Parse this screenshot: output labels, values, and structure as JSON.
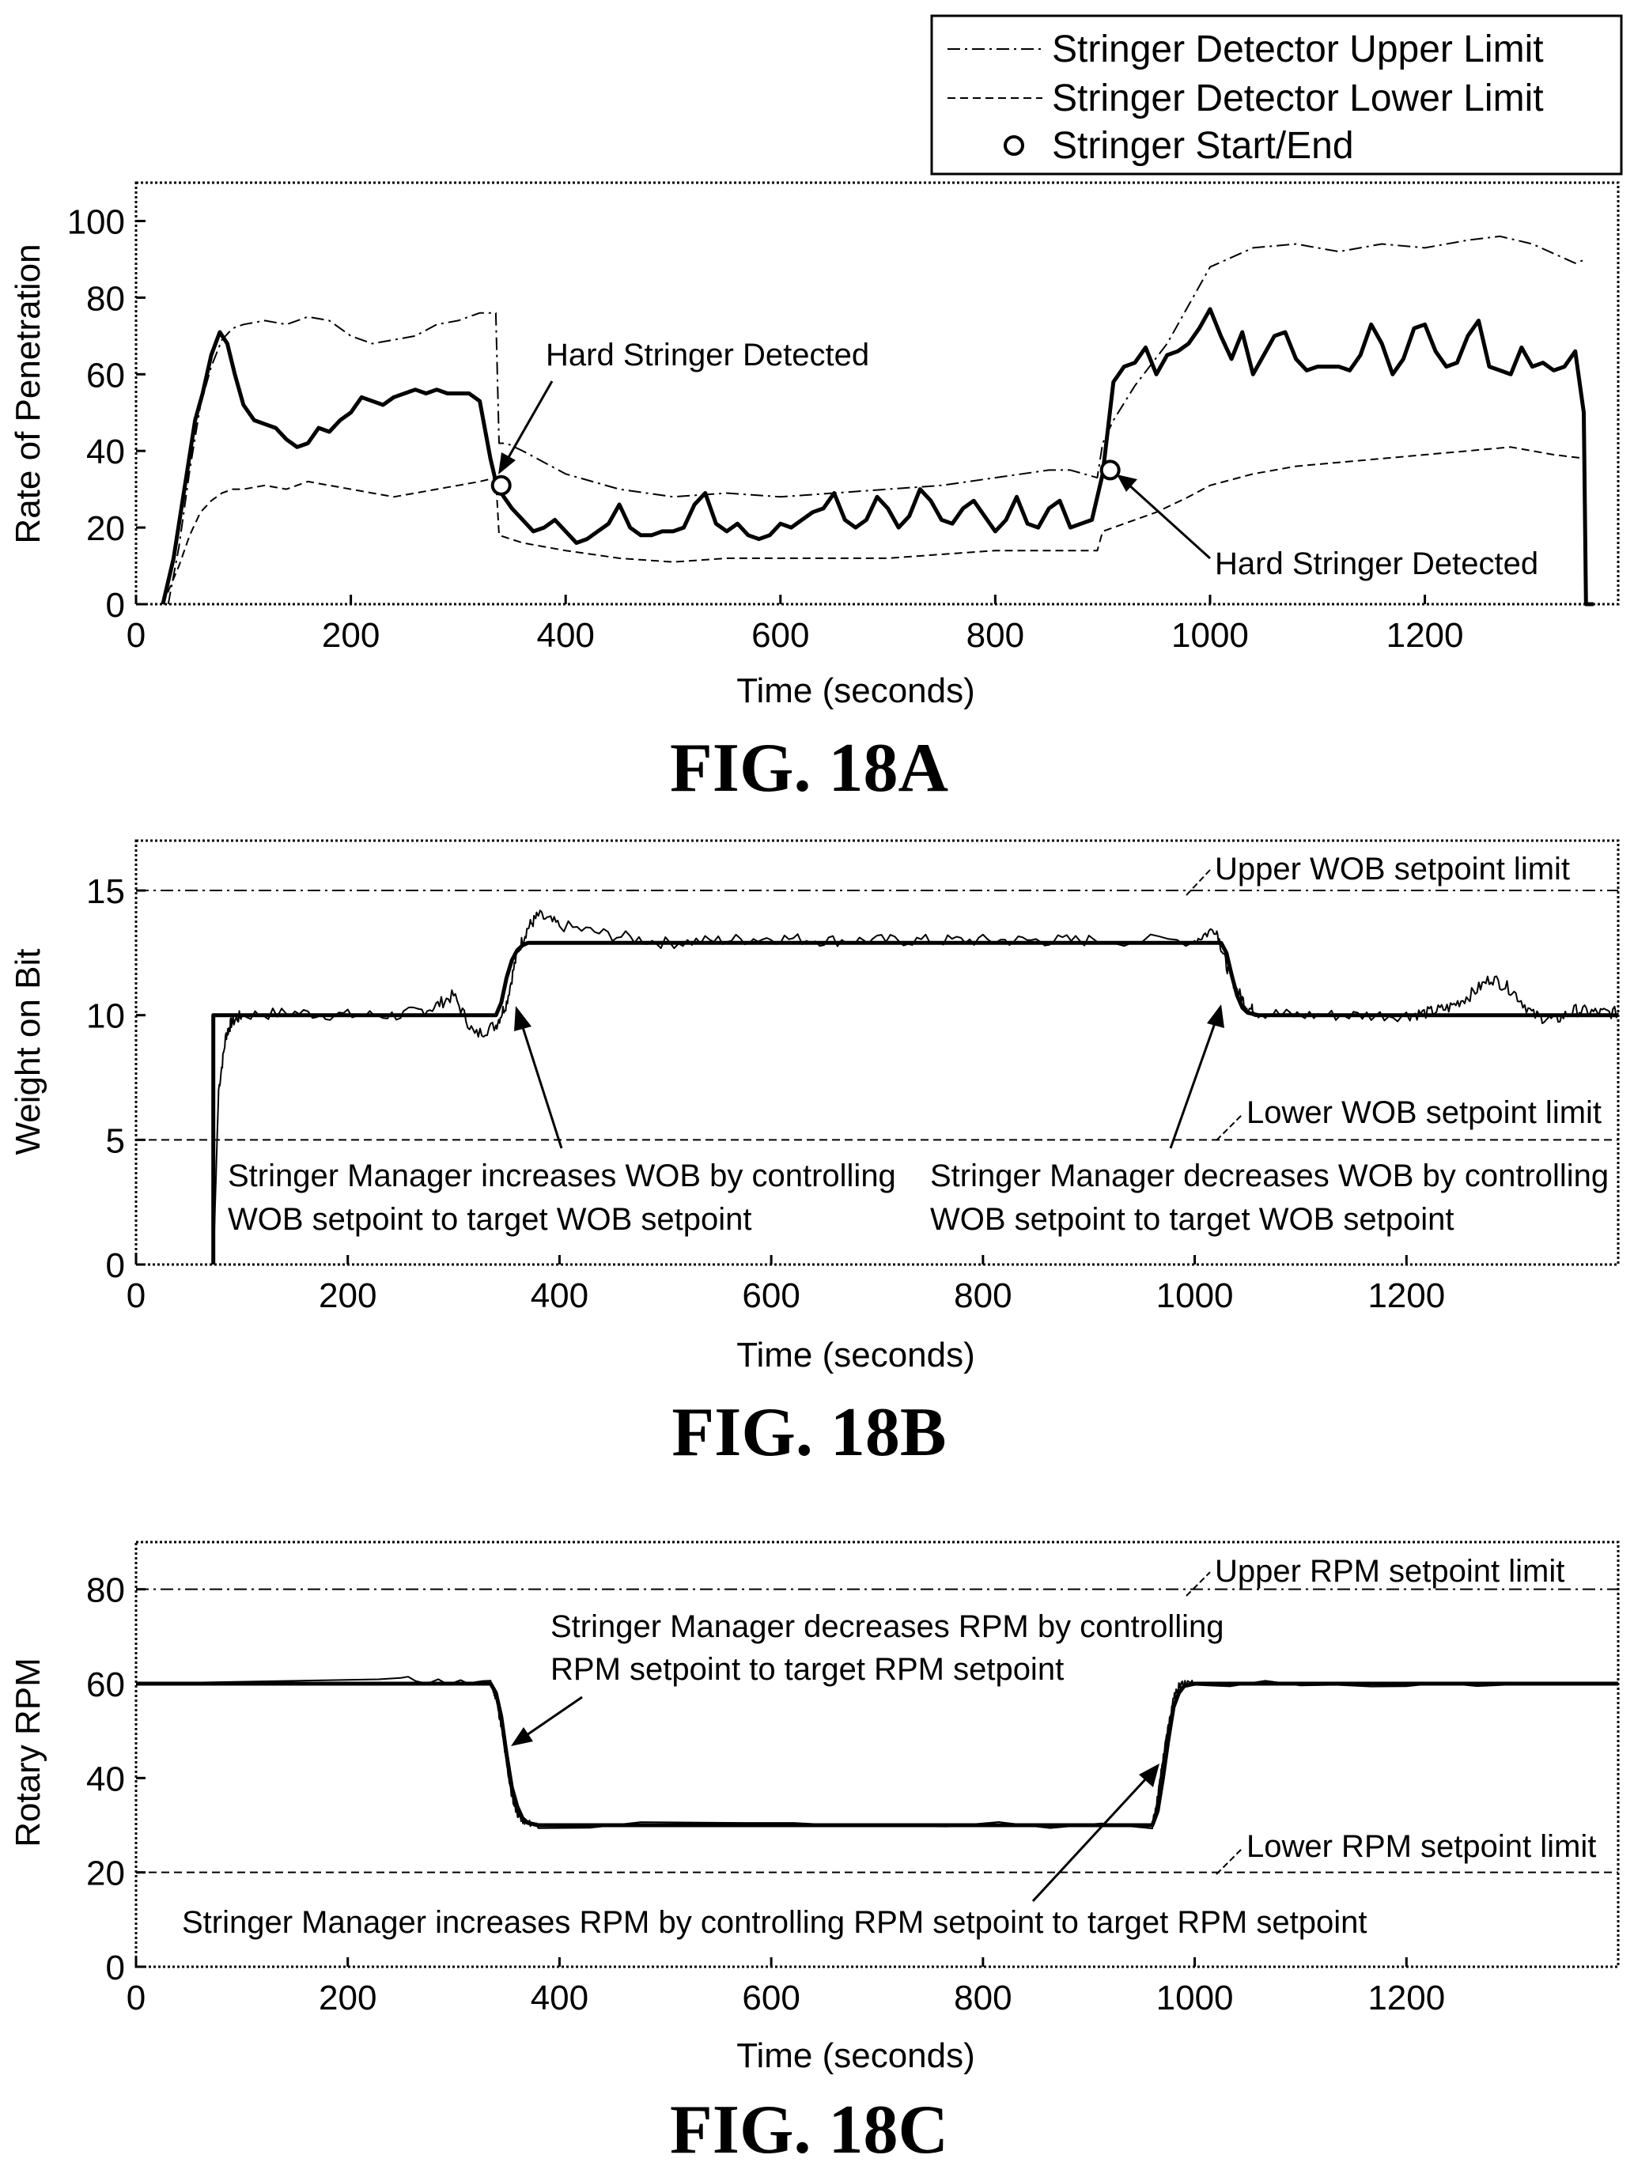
{
  "chart_data": [
    {
      "type": "line",
      "caption": "FIG. 18A",
      "xlabel": "Time (seconds)",
      "ylabel": "Rate of Penetration",
      "xlim": [
        0,
        1380
      ],
      "ylim": [
        0,
        110
      ],
      "xticks": [
        0,
        200,
        400,
        600,
        800,
        1000,
        1200
      ],
      "yticks": [
        0,
        20,
        40,
        60,
        80,
        100
      ],
      "legend": {
        "placement": "top-right, above plot",
        "entries": [
          {
            "label": "Stringer Detector Upper Limit",
            "style": "dash-dot"
          },
          {
            "label": "Stringer Detector Lower Limit",
            "style": "dashed"
          },
          {
            "label": "Stringer Start/End",
            "style": "circle-marker"
          }
        ]
      },
      "series": [
        {
          "label_ref": "rop",
          "style": "solid-thick",
          "x": [
            25,
            35,
            45,
            55,
            62,
            70,
            78,
            85,
            92,
            100,
            110,
            120,
            130,
            140,
            150,
            160,
            170,
            180,
            190,
            200,
            210,
            220,
            230,
            240,
            250,
            260,
            270,
            280,
            290,
            300,
            310,
            320,
            330,
            335,
            340,
            350,
            360,
            370,
            380,
            390,
            400,
            410,
            420,
            430,
            440,
            450,
            460,
            470,
            480,
            490,
            500,
            510,
            520,
            530,
            540,
            550,
            560,
            570,
            580,
            590,
            600,
            610,
            620,
            630,
            640,
            650,
            660,
            670,
            680,
            690,
            700,
            710,
            720,
            730,
            740,
            750,
            760,
            770,
            780,
            790,
            800,
            810,
            820,
            830,
            840,
            850,
            860,
            870,
            880,
            890,
            900,
            910,
            920,
            930,
            940,
            950,
            960,
            970,
            980,
            990,
            1000,
            1010,
            1020,
            1030,
            1040,
            1050,
            1060,
            1070,
            1080,
            1090,
            1100,
            1110,
            1120,
            1130,
            1140,
            1150,
            1160,
            1170,
            1180,
            1190,
            1200,
            1210,
            1220,
            1230,
            1240,
            1250,
            1260,
            1270,
            1280,
            1290,
            1300,
            1310,
            1320,
            1330,
            1340,
            1348,
            1350,
            1355,
            1357
          ],
          "y": [
            0,
            12,
            30,
            48,
            55,
            65,
            71,
            68,
            60,
            52,
            48,
            47,
            46,
            43,
            41,
            42,
            46,
            45,
            48,
            50,
            54,
            53,
            52,
            54,
            55,
            56,
            55,
            56,
            55,
            55,
            55,
            53,
            38,
            32,
            29,
            25,
            22,
            19,
            20,
            22,
            19,
            16,
            17,
            19,
            21,
            26,
            20,
            18,
            18,
            19,
            19,
            20,
            26,
            29,
            21,
            19,
            21,
            18,
            17,
            18,
            21,
            20,
            22,
            24,
            25,
            29,
            22,
            20,
            22,
            28,
            25,
            20,
            23,
            30,
            27,
            22,
            21,
            25,
            27,
            23,
            19,
            22,
            28,
            21,
            20,
            25,
            27,
            20,
            21,
            22,
            34,
            58,
            62,
            63,
            67,
            60,
            65,
            66,
            68,
            72,
            77,
            70,
            64,
            71,
            60,
            65,
            70,
            71,
            64,
            61,
            62,
            62,
            62,
            61,
            65,
            73,
            68,
            60,
            64,
            72,
            73,
            66,
            62,
            63,
            70,
            74,
            62,
            61,
            60,
            67,
            62,
            63,
            61,
            62,
            66,
            50,
            0,
            0,
            0
          ]
        },
        {
          "label_ref": "Stringer Detector Upper Limit",
          "style": "dash-dot",
          "x": [
            30,
            40,
            50,
            60,
            70,
            80,
            90,
            100,
            120,
            140,
            160,
            180,
            200,
            220,
            240,
            260,
            280,
            300,
            320,
            335,
            338,
            345,
            360,
            380,
            400,
            450,
            500,
            550,
            600,
            650,
            700,
            750,
            800,
            850,
            870,
            895,
            900,
            910,
            930,
            960,
            980,
            1000,
            1040,
            1080,
            1120,
            1160,
            1200,
            1240,
            1270,
            1300,
            1340,
            1350
          ],
          "y": [
            0,
            15,
            35,
            52,
            62,
            69,
            72,
            73,
            74,
            73,
            75,
            74,
            70,
            68,
            69,
            70,
            73,
            74,
            76,
            76,
            42,
            42,
            40,
            37,
            34,
            30,
            28,
            29,
            28,
            29,
            30,
            31,
            33,
            35,
            35,
            33,
            42,
            48,
            57,
            68,
            78,
            88,
            93,
            94,
            92,
            94,
            93,
            95,
            96,
            94,
            89,
            90
          ]
        },
        {
          "label_ref": "Stringer Detector Lower Limit",
          "style": "dashed",
          "x": [
            25,
            40,
            50,
            60,
            70,
            80,
            90,
            100,
            120,
            140,
            160,
            180,
            200,
            220,
            240,
            260,
            280,
            300,
            320,
            335,
            338,
            360,
            400,
            450,
            500,
            550,
            600,
            650,
            700,
            750,
            800,
            850,
            880,
            895,
            900,
            920,
            950,
            980,
            1000,
            1040,
            1080,
            1120,
            1160,
            1200,
            1240,
            1280,
            1320,
            1350
          ],
          "y": [
            0,
            10,
            18,
            24,
            27,
            29,
            30,
            30,
            31,
            30,
            32,
            31,
            30,
            29,
            28,
            29,
            30,
            31,
            32,
            33,
            18,
            16,
            14,
            12,
            11,
            12,
            12,
            12,
            12,
            13,
            14,
            14,
            14,
            14,
            19,
            21,
            24,
            28,
            31,
            34,
            36,
            37,
            38,
            39,
            40,
            41,
            39,
            38
          ]
        }
      ],
      "markers": [
        {
          "label_ref": "Stringer Start/End",
          "x": 340,
          "y": 31
        },
        {
          "label_ref": "Stringer Start/End",
          "x": 907,
          "y": 35
        }
      ],
      "annotations": [
        {
          "text": "Hard Stringer Detected",
          "target_x": 340,
          "target_y": 31
        },
        {
          "text": "Hard Stringer Detected",
          "target_x": 907,
          "target_y": 35
        }
      ]
    },
    {
      "type": "line",
      "caption": "FIG. 18B",
      "xlabel": "Time (seconds)",
      "ylabel": "Weight on Bit",
      "xlim": [
        0,
        1400
      ],
      "ylim": [
        0,
        17
      ],
      "xticks": [
        0,
        200,
        400,
        600,
        800,
        1000,
        1200
      ],
      "yticks": [
        0,
        5,
        10,
        15
      ],
      "reference_lines": [
        {
          "label": "Upper WOB setpoint limit",
          "y": 15,
          "style": "dash-dot"
        },
        {
          "label": "Lower WOB setpoint limit",
          "y": 5,
          "style": "dashed"
        }
      ],
      "series": [
        {
          "label_ref": "setpoint",
          "style": "solid-thick",
          "x": [
            73,
            73,
            340,
            345,
            350,
            355,
            360,
            365,
            370,
            380,
            1025,
            1030,
            1035,
            1040,
            1045,
            1050,
            1060,
            1400
          ],
          "y": [
            0,
            10,
            10,
            10.5,
            11.5,
            12.2,
            12.6,
            12.8,
            12.9,
            12.9,
            12.9,
            12.5,
            11.6,
            10.8,
            10.3,
            10.1,
            10,
            10
          ]
        },
        {
          "label_ref": "measured",
          "style": "solid-thin",
          "noise": 0.25,
          "seed": 7,
          "x": [
            73,
            78,
            85,
            90,
            100,
            150,
            200,
            250,
            280,
            300,
            320,
            340,
            350,
            360,
            370,
            380,
            400,
            450,
            500,
            550,
            600,
            650,
            700,
            750,
            800,
            850,
            900,
            1000,
            1020,
            1030,
            1040,
            1050,
            1060,
            1100,
            1150,
            1200,
            1220,
            1240,
            1260,
            1280,
            1300,
            1320,
            1340,
            1360,
            1380,
            1400
          ],
          "y": [
            0,
            7,
            9.2,
            9.7,
            10,
            10.1,
            10,
            10,
            10.3,
            10.8,
            9.2,
            9.6,
            10.5,
            12.5,
            13.5,
            14,
            13.6,
            13.2,
            12.9,
            13,
            13.1,
            13,
            13,
            13,
            13,
            13,
            13,
            13,
            13.5,
            12,
            11,
            10.3,
            10.1,
            10,
            10,
            10,
            10.1,
            10.3,
            10.8,
            11.5,
            11,
            10,
            9.8,
            10.2,
            10.1,
            10.1
          ]
        }
      ],
      "annotations": [
        {
          "text_lines": [
            "Stringer Manager increases WOB by controlling",
            "WOB setpoint to target WOB setpoint"
          ],
          "target_x": 355,
          "target_y": 12
        },
        {
          "text_lines": [
            "Stringer Manager decreases WOB by controlling",
            "WOB setpoint to target WOB setpoint"
          ],
          "target_x": 1020,
          "target_y": 12
        }
      ]
    },
    {
      "type": "line",
      "caption": "FIG. 18C",
      "xlabel": "Time (seconds)",
      "ylabel": "Rotary RPM",
      "xlim": [
        0,
        1400
      ],
      "ylim": [
        0,
        90
      ],
      "xticks": [
        0,
        200,
        400,
        600,
        800,
        1000,
        1200
      ],
      "yticks": [
        0,
        20,
        40,
        60,
        80
      ],
      "reference_lines": [
        {
          "label": "Upper RPM setpoint limit",
          "y": 80,
          "style": "dash-dot"
        },
        {
          "label": "Lower RPM setpoint limit",
          "y": 20,
          "style": "dashed"
        }
      ],
      "series": [
        {
          "label_ref": "setpoint",
          "style": "solid-thick",
          "x": [
            0,
            335,
            340,
            345,
            350,
            355,
            360,
            365,
            370,
            380,
            960,
            965,
            970,
            975,
            980,
            985,
            990,
            1000,
            1400
          ],
          "y": [
            60,
            60,
            58,
            53,
            45,
            38,
            34,
            31.5,
            30.5,
            30,
            30,
            33,
            40,
            48,
            55,
            58,
            59.5,
            60,
            60
          ]
        },
        {
          "label_ref": "measured",
          "style": "solid-thin",
          "noise": 0.7,
          "seed": 11,
          "x": [
            0,
            250,
            335,
            340,
            345,
            350,
            355,
            360,
            365,
            370,
            380,
            960,
            965,
            970,
            975,
            980,
            985,
            990,
            1000,
            1400
          ],
          "y": [
            60,
            61,
            60,
            57,
            51,
            43,
            36,
            32.5,
            31,
            30.5,
            30,
            30,
            36,
            44,
            51,
            57,
            59.5,
            60,
            60,
            60
          ]
        }
      ],
      "annotations": [
        {
          "text_lines": [
            "Stringer Manager decreases RPM by controlling",
            "RPM setpoint to target RPM setpoint"
          ],
          "target_x": 362,
          "target_y": 48
        },
        {
          "text_lines": [
            "Stringer Manager increases RPM by controlling RPM setpoint to target RPM setpoint"
          ],
          "target_x": 958,
          "target_y": 40
        }
      ]
    }
  ]
}
